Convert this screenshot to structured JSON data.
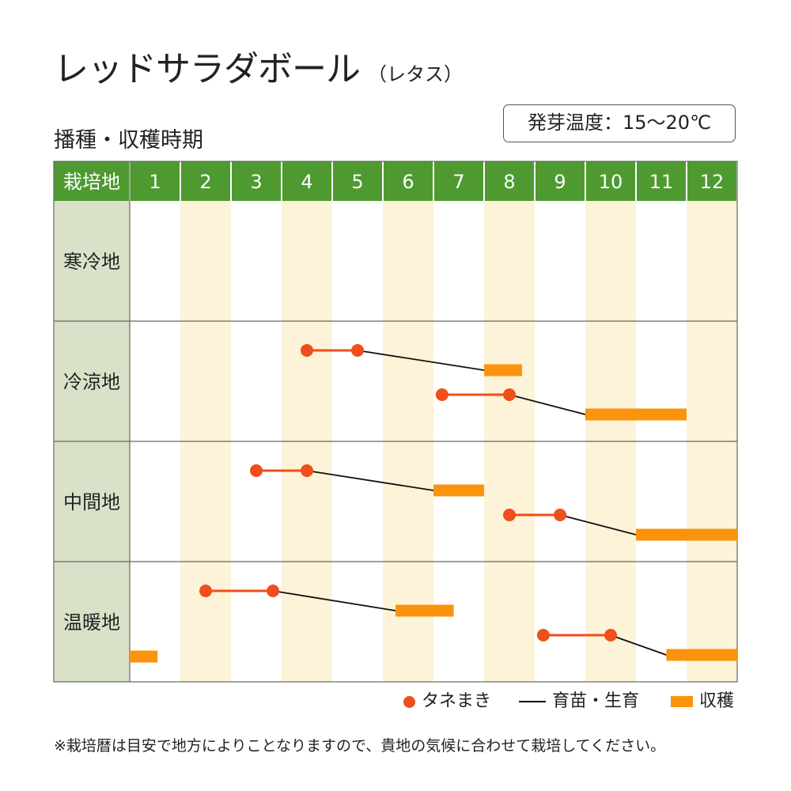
{
  "title": "レッドサラダボール",
  "subtitle": "（レタス）",
  "section_title": "播種・収穫時期",
  "germination_temp": "発芽温度：15〜20℃",
  "footnote": "※栽培暦は目安で地方によりことなりますので、貴地の気候に合わせて栽培してください。",
  "legend": {
    "sowing": "タネまき",
    "seedling": "育苗・生育",
    "harvest": "収穫"
  },
  "colors": {
    "header_bg": "#4e9a31",
    "header_text": "#ffffff",
    "region_bg": "#d9e2c8",
    "stripe": "#fdf3d8",
    "sowing": "#f04e1a",
    "seedling": "#111111",
    "harvest": "#fb930c",
    "grid": "#666666"
  },
  "chart_data": {
    "type": "gantt",
    "header_label": "栽培地",
    "months": [
      "1",
      "2",
      "3",
      "4",
      "5",
      "6",
      "7",
      "8",
      "9",
      "10",
      "11",
      "12"
    ],
    "regions": [
      {
        "name": "寒冷地",
        "schedules": []
      },
      {
        "name": "冷涼地",
        "schedules": [
          {
            "sowing": [
              4.0,
              5.0
            ],
            "harvest": [
              7.5,
              8.25
            ]
          },
          {
            "sowing": [
              6.67,
              8.0
            ],
            "harvest": [
              9.5,
              11.5
            ]
          }
        ]
      },
      {
        "name": "中間地",
        "schedules": [
          {
            "sowing": [
              3.0,
              4.0
            ],
            "harvest": [
              6.5,
              7.5
            ]
          },
          {
            "sowing": [
              8.0,
              9.0
            ],
            "harvest": [
              10.5,
              12.5
            ]
          }
        ]
      },
      {
        "name": "温暖地",
        "schedules": [
          {
            "sowing": [
              2.0,
              3.33
            ],
            "harvest": [
              5.75,
              6.9
            ]
          },
          {
            "sowing": [
              8.67,
              10.0
            ],
            "harvest": [
              11.1,
              13.0
            ]
          },
          {
            "sowing": null,
            "harvest": [
              0.5,
              1.05
            ]
          }
        ]
      }
    ]
  }
}
